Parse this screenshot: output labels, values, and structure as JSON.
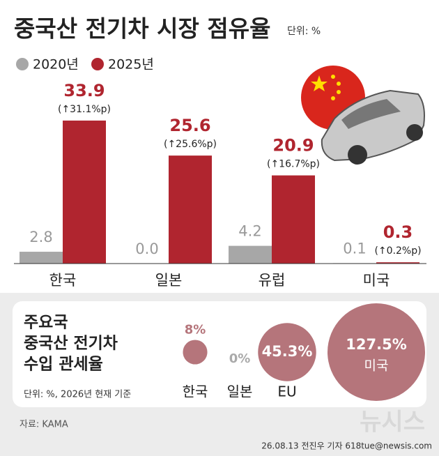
{
  "chart_data": [
    {
      "type": "bar",
      "title": "중국산 전기차 시장 점유율",
      "unit": "단위: %",
      "categories": [
        "한국",
        "일본",
        "유럽",
        "미국"
      ],
      "series": [
        {
          "name": "2020년",
          "color": "#a7a7a7",
          "values": [
            2.8,
            0.0,
            4.2,
            0.1
          ],
          "value_labels": [
            "2.8",
            "0.0",
            "4.2",
            "0.1"
          ]
        },
        {
          "name": "2025년",
          "color": "#b0252f",
          "values": [
            33.9,
            25.6,
            20.9,
            0.3
          ],
          "value_labels": [
            "33.9",
            "25.6",
            "20.9",
            "0.3"
          ],
          "change_labels": [
            "(↑31.1%p)",
            "(↑25.6%p)",
            "(↑16.7%p)",
            "(↑0.2%p)"
          ]
        }
      ]
    },
    {
      "type": "bubble",
      "title": [
        "주요국",
        "중국산 전기차",
        "수입 관세율"
      ],
      "subtitle": "단위: %, 2026년 현재 기준",
      "categories": [
        "한국",
        "일본",
        "EU",
        "미국"
      ],
      "values": [
        8,
        0,
        45.3,
        127.5
      ],
      "value_labels": [
        "8%",
        "0%",
        "45.3%",
        "127.5%"
      ],
      "color": "#b5757b"
    }
  ],
  "source": "자료: KAMA",
  "credit": "26.08.13 전진우 기자 618tue@newsis.com",
  "logo": "뉴시스"
}
